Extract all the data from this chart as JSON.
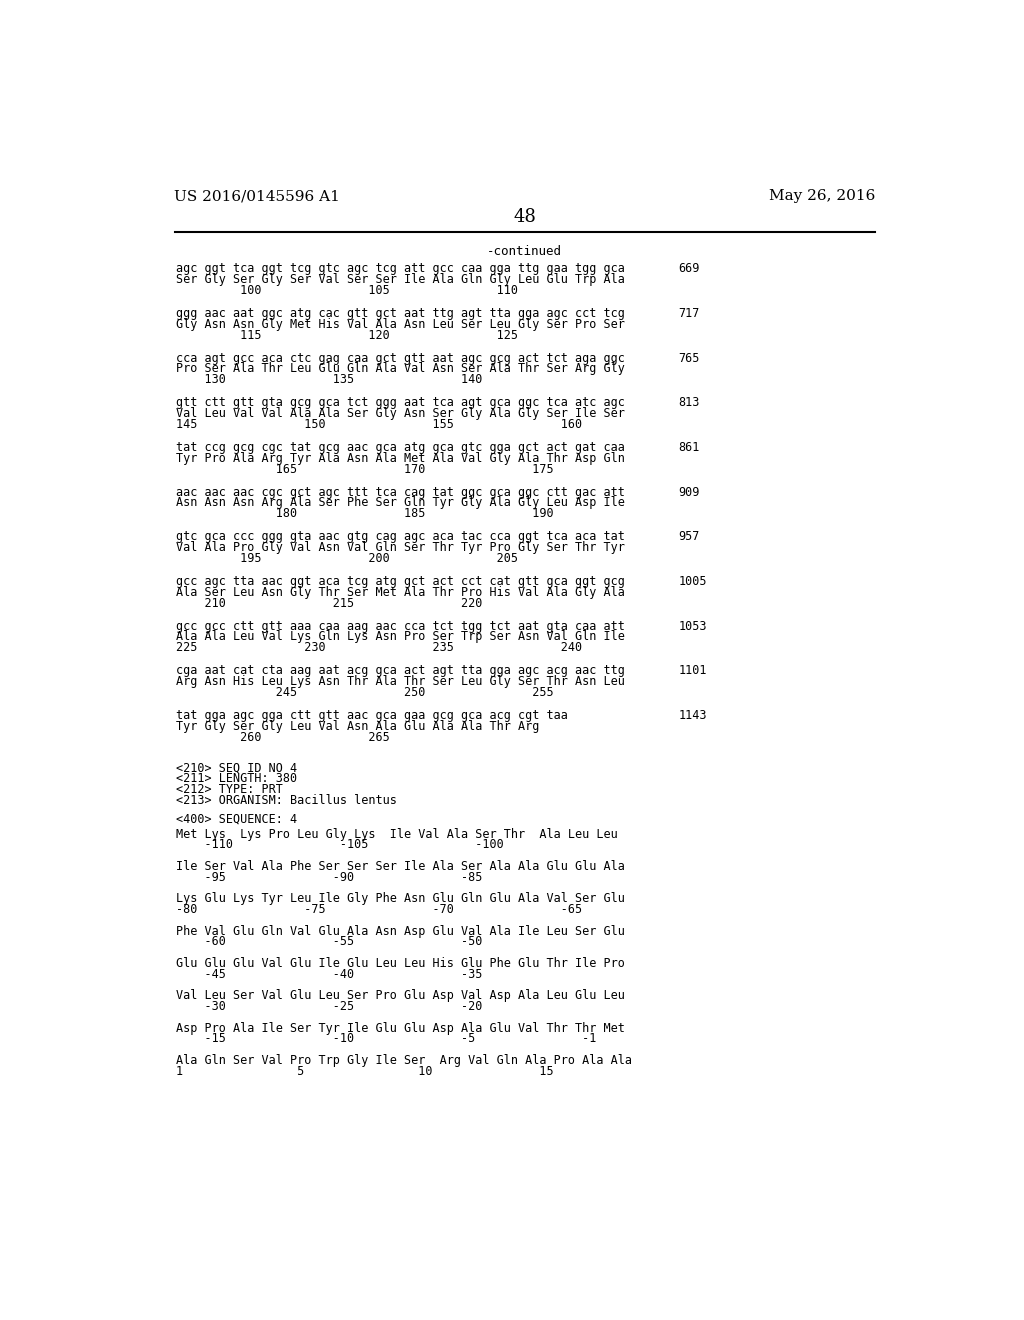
{
  "bg_color": "#ffffff",
  "header_left": "US 2016/0145596 A1",
  "header_right": "May 26, 2016",
  "page_number": "48",
  "continued_text": "-continued",
  "font_family": "monospace",
  "header_fontsize": 11,
  "body_fontsize": 8.5,
  "line_blocks": [
    {
      "lines": [
        "agc ggt tca ggt tcg gtc agc tcg att gcc caa gga ttg gaa tgg gca",
        "Ser Gly Ser Gly Ser Val Ser Ser Ile Ala Gln Gly Leu Glu Trp Ala",
        "         100               105               110"
      ],
      "number": "669"
    },
    {
      "lines": [
        "ggg aac aat ggc atg cac gtt gct aat ttg agt tta gga agc cct tcg",
        "Gly Asn Asn Gly Met His Val Ala Asn Leu Ser Leu Gly Ser Pro Ser",
        "         115               120               125"
      ],
      "number": "717"
    },
    {
      "lines": [
        "cca agt gcc aca ctc gag caa gct gtt aat agc gcg act tct aga ggc",
        "Pro Ser Ala Thr Leu Glu Gln Ala Val Asn Ser Ala Thr Ser Arg Gly",
        "    130               135               140"
      ],
      "number": "765"
    },
    {
      "lines": [
        "gtt ctt gtt gta gcg gca tct ggg aat tca agt gca ggc tca atc agc",
        "Val Leu Val Val Ala Ala Ser Gly Asn Ser Gly Ala Gly Ser Ile Ser",
        "145               150               155               160"
      ],
      "number": "813"
    },
    {
      "lines": [
        "tat ccg gcg cgc tat gcg aac gca atg gca gtc gga gct act gat caa",
        "Tyr Pro Ala Arg Tyr Ala Asn Ala Met Ala Val Gly Ala Thr Asp Gln",
        "              165               170               175"
      ],
      "number": "861"
    },
    {
      "lines": [
        "aac aac aac cgc gct agc ttt tca cag tat ggc gca ggc ctt gac att",
        "Asn Asn Asn Arg Ala Ser Phe Ser Gln Tyr Gly Ala Gly Leu Asp Ile",
        "              180               185               190"
      ],
      "number": "909"
    },
    {
      "lines": [
        "gtc gca ccc ggg gta aac gtg cag agc aca tac cca ggt tca aca tat",
        "Val Ala Pro Gly Val Asn Val Gln Ser Thr Tyr Pro Gly Ser Thr Tyr",
        "         195               200               205"
      ],
      "number": "957"
    },
    {
      "lines": [
        "gcc agc tta aac ggt aca tcg atg gct act cct cat gtt gca ggt gcg",
        "Ala Ser Leu Asn Gly Thr Ser Met Ala Thr Pro His Val Ala Gly Ala",
        "    210               215               220"
      ],
      "number": "1005"
    },
    {
      "lines": [
        "gcc gcc ctt gtt aaa caa aag aac cca tct tgg tct aat gta caa att",
        "Ala Ala Leu Val Lys Gln Lys Asn Pro Ser Trp Ser Asn Val Gln Ile",
        "225               230               235               240"
      ],
      "number": "1053"
    },
    {
      "lines": [
        "cga aat cat cta aag aat acg gca act agt tta gga agc acg aac ttg",
        "Arg Asn His Leu Lys Asn Thr Ala Thr Ser Leu Gly Ser Thr Asn Leu",
        "              245               250               255"
      ],
      "number": "1101"
    },
    {
      "lines": [
        "tat gga agc gga ctt gtt aac gca gaa gcg gca acg cgt taa",
        "Tyr Gly Ser Gly Leu Val Asn Ala Glu Ala Ala Thr Arg",
        "         260               265"
      ],
      "number": "1143"
    }
  ],
  "seq_info_lines": [
    "<210> SEQ ID NO 4",
    "<211> LENGTH: 380",
    "<212> TYPE: PRT",
    "<213> ORGANISM: Bacillus lentus",
    "",
    "<400> SEQUENCE: 4"
  ],
  "seq_data_blocks": [
    {
      "lines": [
        "Met Lys  Lys Pro Leu Gly Lys  Ile Val Ala Ser Thr  Ala Leu Leu",
        "    -110               -105               -100"
      ]
    },
    {
      "lines": [
        "Ile Ser Val Ala Phe Ser Ser Ser Ile Ala Ser Ala Ala Glu Glu Ala",
        "    -95               -90               -85"
      ]
    },
    {
      "lines": [
        "Lys Glu Lys Tyr Leu Ile Gly Phe Asn Glu Gln Glu Ala Val Ser Glu",
        "-80               -75               -70               -65"
      ]
    },
    {
      "lines": [
        "Phe Val Glu Gln Val Glu Ala Asn Asp Glu Val Ala Ile Leu Ser Glu",
        "    -60               -55               -50"
      ]
    },
    {
      "lines": [
        "Glu Glu Glu Val Glu Ile Glu Leu Leu His Glu Phe Glu Thr Ile Pro",
        "    -45               -40               -35"
      ]
    },
    {
      "lines": [
        "Val Leu Ser Val Glu Leu Ser Pro Glu Asp Val Asp Ala Leu Glu Leu",
        "    -30               -25               -20"
      ]
    },
    {
      "lines": [
        "Asp Pro Ala Ile Ser Tyr Ile Glu Glu Asp Ala Glu Val Thr Thr Met",
        "    -15               -10               -5               -1"
      ]
    },
    {
      "lines": [
        "Ala Gln Ser Val Pro Trp Gly Ile Ser  Arg Val Gln Ala Pro Ala Ala",
        "1                5                10               15"
      ]
    }
  ]
}
